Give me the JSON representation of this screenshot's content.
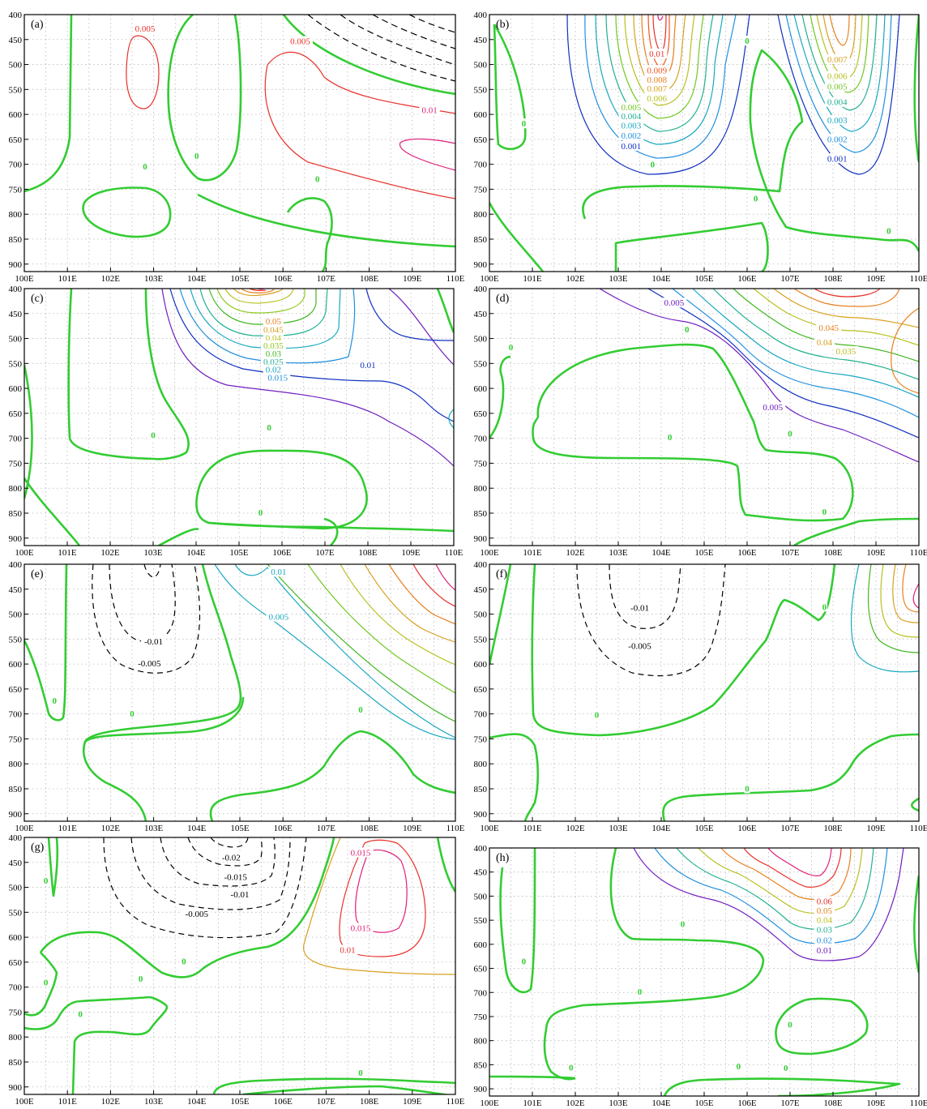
{
  "figure": {
    "panels": [
      {
        "id": "a",
        "label": "(a)"
      },
      {
        "id": "b",
        "label": "(b)"
      },
      {
        "id": "c",
        "label": "(c)"
      },
      {
        "id": "d",
        "label": "(d)"
      },
      {
        "id": "e",
        "label": "(e)"
      },
      {
        "id": "f",
        "label": "(f)"
      },
      {
        "id": "g",
        "label": "(g)"
      },
      {
        "id": "h",
        "label": "(h)"
      }
    ]
  },
  "chart_data": [
    {
      "type": "contour",
      "panel": "(a)",
      "x_ticks": [
        "100E",
        "101E",
        "102E",
        "103E",
        "104E",
        "105E",
        "106E",
        "107E",
        "108E",
        "109E",
        "110E"
      ],
      "y_ticks": [
        "400",
        "450",
        "500",
        "550",
        "600",
        "650",
        "700",
        "750",
        "800",
        "850",
        "900"
      ],
      "xlim": [
        100,
        110
      ],
      "ylim": [
        915,
        400
      ],
      "grid": true,
      "contour_labels": [
        {
          "text": "0.005",
          "x": 102.8,
          "y": 428,
          "color": "#e8302a"
        },
        {
          "text": "0.005",
          "x": 106.4,
          "y": 453,
          "color": "#e8302a"
        },
        {
          "text": "0.01",
          "x": 109.4,
          "y": 591,
          "color": "#e0207a"
        },
        {
          "text": "0",
          "x": 102.8,
          "y": 704,
          "color": "#33cc33"
        },
        {
          "text": "0",
          "x": 104.0,
          "y": 683,
          "color": "#33cc33"
        },
        {
          "text": "0",
          "x": 106.8,
          "y": 729,
          "color": "#33cc33"
        }
      ]
    },
    {
      "type": "contour",
      "panel": "(b)",
      "x_ticks": [
        "100E",
        "101E",
        "102E",
        "103E",
        "104E",
        "105E",
        "106E",
        "107E",
        "108E",
        "109E",
        "110E"
      ],
      "y_ticks": [
        "400",
        "450",
        "500",
        "550",
        "600",
        "650",
        "700",
        "750",
        "800",
        "850",
        "900"
      ],
      "xlim": [
        100,
        110
      ],
      "ylim": [
        915,
        400
      ],
      "grid": true,
      "contour_labels": [
        {
          "text": "0.01",
          "x": 103.9,
          "y": 478,
          "color": "#e8302a"
        },
        {
          "text": "0.009",
          "x": 103.9,
          "y": 511,
          "color": "#ee5520"
        },
        {
          "text": "0.008",
          "x": 103.9,
          "y": 530,
          "color": "#e8801e"
        },
        {
          "text": "0.007",
          "x": 103.9,
          "y": 548,
          "color": "#d8a020"
        },
        {
          "text": "0.006",
          "x": 103.9,
          "y": 567,
          "color": "#b8c020"
        },
        {
          "text": "0.005",
          "x": 103.3,
          "y": 585,
          "color": "#70c820"
        },
        {
          "text": "0.004",
          "x": 103.3,
          "y": 603,
          "color": "#20b090"
        },
        {
          "text": "0.003",
          "x": 103.3,
          "y": 622,
          "color": "#18a8c0"
        },
        {
          "text": "0.002",
          "x": 103.3,
          "y": 642,
          "color": "#2090e0"
        },
        {
          "text": "0.001",
          "x": 103.3,
          "y": 663,
          "color": "#1030c0"
        },
        {
          "text": "0.007",
          "x": 108.1,
          "y": 489,
          "color": "#d8a020"
        },
        {
          "text": "0.006",
          "x": 108.1,
          "y": 523,
          "color": "#b8c020"
        },
        {
          "text": "0.005",
          "x": 108.1,
          "y": 544,
          "color": "#70c820"
        },
        {
          "text": "0.004",
          "x": 108.1,
          "y": 575,
          "color": "#20b090"
        },
        {
          "text": "0.003",
          "x": 108.1,
          "y": 611,
          "color": "#18a8c0"
        },
        {
          "text": "0.002",
          "x": 108.1,
          "y": 649,
          "color": "#2090e0"
        },
        {
          "text": "0.001",
          "x": 108.1,
          "y": 688,
          "color": "#1030c0"
        },
        {
          "text": "0",
          "x": 100.8,
          "y": 618,
          "color": "#33cc33"
        },
        {
          "text": "0",
          "x": 103.8,
          "y": 700,
          "color": "#33cc33"
        },
        {
          "text": "0",
          "x": 106.0,
          "y": 452,
          "color": "#33cc33"
        },
        {
          "text": "0",
          "x": 106.2,
          "y": 768,
          "color": "#33cc33"
        },
        {
          "text": "0",
          "x": 109.3,
          "y": 833,
          "color": "#33cc33"
        }
      ]
    },
    {
      "type": "contour",
      "panel": "(c)",
      "x_ticks": [
        "100E",
        "101E",
        "102E",
        "103E",
        "104E",
        "105E",
        "106E",
        "107E",
        "108E",
        "109E",
        "110E"
      ],
      "y_ticks": [
        "400",
        "450",
        "500",
        "550",
        "600",
        "650",
        "700",
        "750",
        "800",
        "850",
        "900"
      ],
      "xlim": [
        100,
        110
      ],
      "ylim": [
        915,
        400
      ],
      "grid": true,
      "contour_labels": [
        {
          "text": "0.05",
          "x": 105.8,
          "y": 465,
          "color": "#e8801e"
        },
        {
          "text": "0.045",
          "x": 105.8,
          "y": 482,
          "color": "#d8a020"
        },
        {
          "text": "0.04",
          "x": 105.8,
          "y": 498,
          "color": "#b8c020"
        },
        {
          "text": "0.035",
          "x": 105.8,
          "y": 514,
          "color": "#90c820"
        },
        {
          "text": "0.03",
          "x": 105.8,
          "y": 530,
          "color": "#40b820"
        },
        {
          "text": "0.025",
          "x": 105.8,
          "y": 546,
          "color": "#20b090"
        },
        {
          "text": "0.02",
          "x": 105.8,
          "y": 562,
          "color": "#18a8c0"
        },
        {
          "text": "0.015",
          "x": 105.9,
          "y": 578,
          "color": "#2090e0"
        },
        {
          "text": "0.01",
          "x": 108.0,
          "y": 553,
          "color": "#1030c0"
        },
        {
          "text": "0",
          "x": 103.0,
          "y": 693,
          "color": "#33cc33"
        },
        {
          "text": "0",
          "x": 105.7,
          "y": 678,
          "color": "#33cc33"
        },
        {
          "text": "0",
          "x": 105.5,
          "y": 848,
          "color": "#33cc33"
        }
      ]
    },
    {
      "type": "contour",
      "panel": "(d)",
      "x_ticks": [
        "100E",
        "101E",
        "102E",
        "103E",
        "104E",
        "105E",
        "106E",
        "107E",
        "108E",
        "109E",
        "110E"
      ],
      "y_ticks": [
        "400",
        "450",
        "500",
        "550",
        "600",
        "650",
        "700",
        "750",
        "800",
        "850",
        "900"
      ],
      "xlim": [
        100,
        110
      ],
      "ylim": [
        915,
        400
      ],
      "grid": true,
      "contour_labels": [
        {
          "text": "0.005",
          "x": 104.3,
          "y": 428,
          "color": "#7020c0"
        },
        {
          "text": "0.045",
          "x": 107.9,
          "y": 478,
          "color": "#e8801e"
        },
        {
          "text": "0.04",
          "x": 107.8,
          "y": 507,
          "color": "#d8a020"
        },
        {
          "text": "0.035",
          "x": 108.3,
          "y": 525,
          "color": "#b8c020"
        },
        {
          "text": "0.005",
          "x": 106.6,
          "y": 637,
          "color": "#7020c0"
        },
        {
          "text": "0",
          "x": 100.5,
          "y": 517,
          "color": "#33cc33"
        },
        {
          "text": "0",
          "x": 104.6,
          "y": 481,
          "color": "#33cc33"
        },
        {
          "text": "0",
          "x": 104.2,
          "y": 697,
          "color": "#33cc33"
        },
        {
          "text": "0",
          "x": 107.0,
          "y": 690,
          "color": "#33cc33"
        },
        {
          "text": "0",
          "x": 107.8,
          "y": 847,
          "color": "#33cc33"
        }
      ]
    },
    {
      "type": "contour",
      "panel": "(e)",
      "x_ticks": [
        "100E",
        "101E",
        "102E",
        "103E",
        "104E",
        "105E",
        "106E",
        "107E",
        "108E",
        "109E",
        "110E"
      ],
      "y_ticks": [
        "400",
        "450",
        "500",
        "550",
        "600",
        "650",
        "700",
        "750",
        "800",
        "850",
        "900"
      ],
      "xlim": [
        100,
        110
      ],
      "ylim": [
        915,
        400
      ],
      "grid": true,
      "contour_labels": [
        {
          "text": "0.01",
          "x": 105.9,
          "y": 415,
          "color": "#18a8c0"
        },
        {
          "text": "0.005",
          "x": 105.9,
          "y": 505,
          "color": "#18a8c0"
        },
        {
          "text": "-0.01",
          "x": 103.0,
          "y": 554,
          "color": "#000000"
        },
        {
          "text": "-0.005",
          "x": 102.9,
          "y": 598,
          "color": "#000000"
        },
        {
          "text": "0",
          "x": 100.7,
          "y": 673,
          "color": "#33cc33"
        },
        {
          "text": "0",
          "x": 102.5,
          "y": 699,
          "color": "#33cc33"
        },
        {
          "text": "0",
          "x": 107.8,
          "y": 691,
          "color": "#33cc33"
        }
      ]
    },
    {
      "type": "contour",
      "panel": "(f)",
      "x_ticks": [
        "100E",
        "101E",
        "102E",
        "103E",
        "104E",
        "105E",
        "106E",
        "107E",
        "108E",
        "109E",
        "110E"
      ],
      "y_ticks": [
        "400",
        "450",
        "500",
        "550",
        "600",
        "650",
        "700",
        "750",
        "800",
        "850",
        "900"
      ],
      "xlim": [
        100,
        110
      ],
      "ylim": [
        915,
        400
      ],
      "grid": true,
      "contour_labels": [
        {
          "text": "-0.01",
          "x": 103.5,
          "y": 487,
          "color": "#000000"
        },
        {
          "text": "-0.005",
          "x": 103.5,
          "y": 563,
          "color": "#000000"
        },
        {
          "text": "0",
          "x": 102.5,
          "y": 701,
          "color": "#33cc33"
        },
        {
          "text": "0",
          "x": 106.0,
          "y": 849,
          "color": "#33cc33"
        },
        {
          "text": "0",
          "x": 107.8,
          "y": 485,
          "color": "#33cc33"
        }
      ]
    },
    {
      "type": "contour",
      "panel": "(g)",
      "x_ticks": [
        "100E",
        "101E",
        "102E",
        "103E",
        "104E",
        "105E",
        "106E",
        "107E",
        "108E",
        "109E",
        "110E"
      ],
      "y_ticks": [
        "400",
        "450",
        "500",
        "550",
        "600",
        "650",
        "700",
        "750",
        "800",
        "850",
        "900"
      ],
      "xlim": [
        100,
        110
      ],
      "ylim": [
        915,
        400
      ],
      "grid": true,
      "contour_labels": [
        {
          "text": "-0.02",
          "x": 104.8,
          "y": 440,
          "color": "#000000"
        },
        {
          "text": "-0.015",
          "x": 104.9,
          "y": 479,
          "color": "#000000"
        },
        {
          "text": "-0.01",
          "x": 105.0,
          "y": 514,
          "color": "#000000"
        },
        {
          "text": "-0.005",
          "x": 104.0,
          "y": 553,
          "color": "#000000"
        },
        {
          "text": "0.015",
          "x": 107.8,
          "y": 430,
          "color": "#e0207a"
        },
        {
          "text": "0.015",
          "x": 107.8,
          "y": 581,
          "color": "#e0207a"
        },
        {
          "text": "0.01",
          "x": 107.5,
          "y": 625,
          "color": "#e8302a"
        },
        {
          "text": "0",
          "x": 100.5,
          "y": 486,
          "color": "#33cc33"
        },
        {
          "text": "0",
          "x": 100.5,
          "y": 690,
          "color": "#33cc33"
        },
        {
          "text": "0",
          "x": 101.3,
          "y": 753,
          "color": "#33cc33"
        },
        {
          "text": "0",
          "x": 102.7,
          "y": 683,
          "color": "#33cc33"
        },
        {
          "text": "0",
          "x": 103.7,
          "y": 648,
          "color": "#33cc33"
        },
        {
          "text": "0",
          "x": 107.8,
          "y": 871,
          "color": "#33cc33"
        }
      ]
    },
    {
      "type": "contour",
      "panel": "(h)",
      "x_ticks": [
        "100E",
        "101E",
        "102E",
        "103E",
        "104E",
        "105E",
        "106E",
        "107E",
        "108E",
        "109E",
        "110E"
      ],
      "y_ticks": [
        "400",
        "450",
        "500",
        "550",
        "600",
        "650",
        "700",
        "750",
        "800",
        "850",
        "900"
      ],
      "xlim": [
        100,
        110
      ],
      "ylim": [
        915,
        400
      ],
      "grid": true,
      "contour_labels": [
        {
          "text": "0.06",
          "x": 107.8,
          "y": 510,
          "color": "#e8302a"
        },
        {
          "text": "0.05",
          "x": 107.8,
          "y": 530,
          "color": "#e8801e"
        },
        {
          "text": "0.04",
          "x": 107.8,
          "y": 549,
          "color": "#b8c020"
        },
        {
          "text": "0.03",
          "x": 107.8,
          "y": 569,
          "color": "#20b090"
        },
        {
          "text": "0.02",
          "x": 107.8,
          "y": 591,
          "color": "#2090e0"
        },
        {
          "text": "0.01",
          "x": 107.8,
          "y": 612,
          "color": "#7020c0"
        },
        {
          "text": "0",
          "x": 100.8,
          "y": 635,
          "color": "#33cc33"
        },
        {
          "text": "0",
          "x": 104.5,
          "y": 557,
          "color": "#33cc33"
        },
        {
          "text": "0",
          "x": 103.5,
          "y": 698,
          "color": "#33cc33"
        },
        {
          "text": "0",
          "x": 107.0,
          "y": 766,
          "color": "#33cc33"
        },
        {
          "text": "0",
          "x": 106.9,
          "y": 856,
          "color": "#33cc33"
        },
        {
          "text": "0",
          "x": 105.8,
          "y": 853,
          "color": "#33cc33"
        },
        {
          "text": "0",
          "x": 101.9,
          "y": 855,
          "color": "#33cc33"
        }
      ]
    }
  ]
}
